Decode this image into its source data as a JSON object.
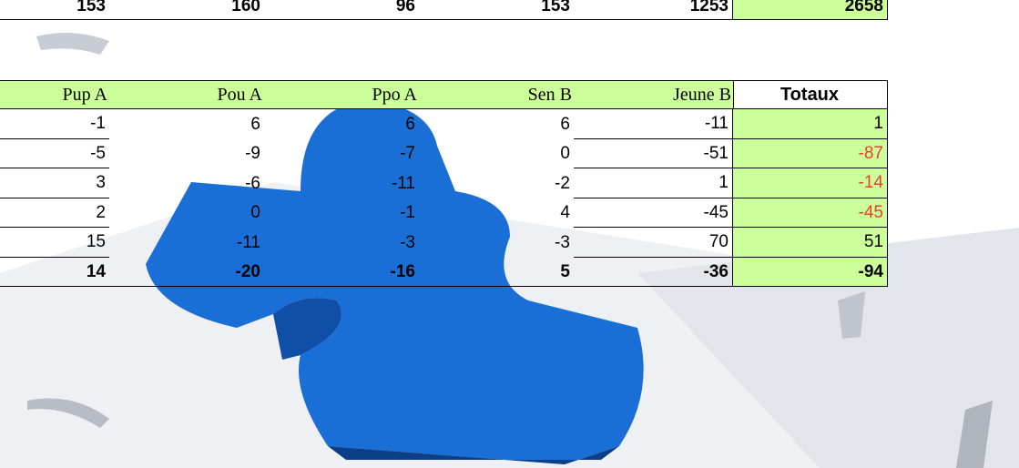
{
  "top_row": [
    153,
    160,
    96,
    153,
    1253,
    2658
  ],
  "table": {
    "header": [
      "Pup A",
      "Pou A",
      "Ppo A",
      "Sen B",
      "Jeune B",
      "Totaux"
    ],
    "rows": [
      [
        -1,
        6,
        6,
        6,
        -11,
        1
      ],
      [
        -5,
        -9,
        -7,
        0,
        -51,
        -87
      ],
      [
        3,
        -6,
        -11,
        -2,
        1,
        -14
      ],
      [
        2,
        0,
        -1,
        4,
        -45,
        -45
      ],
      [
        15,
        -11,
        -3,
        -3,
        70,
        51
      ],
      [
        14,
        -20,
        -16,
        5,
        -36,
        -94
      ]
    ]
  }
}
